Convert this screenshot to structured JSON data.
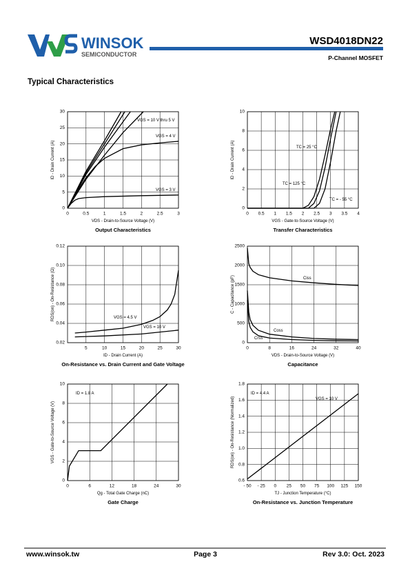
{
  "header": {
    "logo": "WINSOK",
    "logo_sub": "SEMICONDUCTOR",
    "part_number": "WSD4018DN22",
    "device": "P-Channel MOSFET"
  },
  "section_title": "Typical Characteristics",
  "chart_data": [
    {
      "type": "line",
      "title": "Output Characteristics",
      "x_label": "VDS - Drain-to-Source Voltage (V)",
      "y_label": "ID - Drain Current (A)",
      "xlim": [
        0,
        3
      ],
      "xticks": [
        0,
        0.5,
        1,
        1.5,
        2,
        2.5,
        3
      ],
      "ylim": [
        0,
        30
      ],
      "yticks": [
        0,
        5,
        10,
        15,
        20,
        25,
        30
      ],
      "grid": true,
      "annotations": [
        "VGS = 10 V thru 5 V",
        "VGS = 4 V",
        "VGS = 3 V"
      ],
      "series": [
        {
          "color": "#000000",
          "x": [
            0,
            0.5,
            1,
            1.45
          ],
          "values": [
            0,
            11.5,
            21,
            30
          ]
        },
        {
          "color": "#000000",
          "x": [
            0,
            0.5,
            1,
            1.55
          ],
          "values": [
            0,
            11,
            20,
            30
          ]
        },
        {
          "color": "#000000",
          "x": [
            0,
            0.5,
            1,
            1.7
          ],
          "values": [
            0,
            10.5,
            19,
            30
          ]
        },
        {
          "color": "#000000",
          "x": [
            0,
            0.5,
            1,
            1.5,
            2.05
          ],
          "values": [
            0,
            9,
            16.5,
            23.5,
            30
          ]
        },
        {
          "color": "#000000",
          "x": [
            0,
            0.25,
            0.5,
            0.75,
            1,
            1.5,
            2,
            2.5,
            3
          ],
          "values": [
            0,
            5,
            9.5,
            13,
            15.5,
            18.5,
            19.7,
            20.3,
            20.8
          ]
        },
        {
          "color": "#000000",
          "x": [
            0,
            0.1,
            0.2,
            0.3,
            0.5,
            1,
            2,
            3
          ],
          "values": [
            0,
            1.5,
            2.5,
            3,
            3.3,
            3.6,
            3.9,
            4.1
          ]
        }
      ]
    },
    {
      "type": "line",
      "title": "Transfer Characteristics",
      "x_label": "VGS - Gate-to-Source Voltage (V)",
      "y_label": "ID - Drain Current (A)",
      "xlim": [
        0,
        4
      ],
      "xticks": [
        0,
        0.5,
        1,
        1.5,
        2,
        2.5,
        3,
        3.5,
        4
      ],
      "ylim": [
        0,
        10
      ],
      "yticks": [
        0,
        2,
        4,
        6,
        8,
        10
      ],
      "grid": true,
      "annotations": [
        "TC = 25 °C",
        "TC = 125 °C",
        "TC = - 55 °C"
      ],
      "series": [
        {
          "color": "#000000",
          "x": [
            0,
            2.2,
            2.4,
            2.6,
            2.8,
            3.0,
            3.2
          ],
          "values": [
            0,
            0,
            0.5,
            1.8,
            4.2,
            7.2,
            10
          ]
        },
        {
          "color": "#000000",
          "x": [
            0,
            2.0,
            2.2,
            2.4,
            2.6,
            2.8,
            3.0,
            3.15
          ],
          "values": [
            0,
            0,
            0.3,
            1.2,
            3,
            5.5,
            8.2,
            10
          ]
        },
        {
          "color": "#000000",
          "x": [
            0,
            2.4,
            2.6,
            2.8,
            3.0,
            3.2,
            3.35
          ],
          "values": [
            0,
            0,
            0.5,
            2,
            4.8,
            8,
            10
          ]
        }
      ]
    },
    {
      "type": "line",
      "title": "On-Resistance vs. Drain Current and Gate Voltage",
      "x_label": "ID - Drain Current (A)",
      "y_label": "RDS(on) - On-Resistance (Ω)",
      "xlim": [
        0,
        30
      ],
      "xticks": [
        5,
        10,
        15,
        20,
        25,
        30
      ],
      "ylim": [
        0.02,
        0.12
      ],
      "yticks": [
        0.02,
        0.04,
        0.06,
        0.08,
        {
          "value": 0.1,
          "label": "0.10"
        },
        0.12
      ],
      "grid": true,
      "annotations": [
        "VGS = 4.5 V",
        "VGS = 10 V"
      ],
      "series": [
        {
          "color": "#000000",
          "x": [
            2,
            5,
            10,
            15,
            20,
            23,
            25,
            27,
            28,
            29,
            30
          ],
          "values": [
            0.03,
            0.031,
            0.033,
            0.035,
            0.039,
            0.043,
            0.047,
            0.054,
            0.06,
            0.07,
            0.095
          ]
        },
        {
          "color": "#000000",
          "x": [
            2,
            10,
            20,
            30
          ],
          "values": [
            0.026,
            0.027,
            0.029,
            0.033
          ]
        }
      ]
    },
    {
      "type": "line",
      "title": "Capacitance",
      "x_label": "VDS - Drain-to-Source Voltage (V)",
      "y_label": "C - Capacitance (pF)",
      "xlim": [
        0,
        40
      ],
      "xticks": [
        0,
        8,
        16,
        24,
        32,
        40
      ],
      "ylim": [
        0,
        2500
      ],
      "yticks": [
        0,
        500,
        1000,
        1500,
        2000,
        2500
      ],
      "grid": true,
      "annotations": [
        "Ciss",
        "Coss",
        "Crss"
      ],
      "series": [
        {
          "color": "#000000",
          "x": [
            0,
            0.5,
            1,
            2,
            4,
            8,
            16,
            24,
            32,
            40
          ],
          "values": [
            2450,
            2050,
            1950,
            1850,
            1760,
            1680,
            1600,
            1550,
            1510,
            1480
          ]
        },
        {
          "color": "#000000",
          "x": [
            0,
            0.5,
            1,
            2,
            4,
            8,
            16,
            24,
            32,
            40
          ],
          "values": [
            1350,
            800,
            600,
            450,
            320,
            220,
            150,
            110,
            90,
            80
          ]
        },
        {
          "color": "#000000",
          "x": [
            0,
            0.5,
            1,
            2,
            4,
            8,
            16,
            24,
            32,
            40
          ],
          "values": [
            1100,
            550,
            400,
            280,
            180,
            120,
            80,
            60,
            50,
            45
          ]
        }
      ]
    },
    {
      "type": "line",
      "title": "Gate Charge",
      "x_label": "Qg - Total Gate Charge (nC)",
      "y_label": "VGS - Gate-to-Source Voltage (V)",
      "xlim": [
        0,
        30
      ],
      "xticks": [
        0,
        6,
        12,
        18,
        24,
        30
      ],
      "ylim": [
        0,
        10
      ],
      "yticks": [
        0,
        2,
        4,
        6,
        8,
        10
      ],
      "grid": true,
      "annotations": [
        "ID = 1.8 A"
      ],
      "series": [
        {
          "color": "#000000",
          "x": [
            0,
            0.5,
            3,
            9,
            27
          ],
          "values": [
            0,
            1.5,
            3.1,
            3.1,
            10
          ]
        }
      ]
    },
    {
      "type": "line",
      "title": "On-Resistance vs. Junction Temperature",
      "x_label": "TJ - Junction Temperature (°C)",
      "y_label": "RDS(on) - On-Resistance (Normalized)",
      "xlim": [
        -50,
        150
      ],
      "xticks": [
        {
          "value": -50,
          "label": "- 50"
        },
        {
          "value": -25,
          "label": "- 25"
        },
        0,
        25,
        50,
        75,
        100,
        125,
        150
      ],
      "ylim": [
        0.6,
        1.8
      ],
      "yticks": [
        0.6,
        0.8,
        {
          "value": 1.0,
          "label": "1.0"
        },
        1.2,
        1.4,
        1.6,
        1.8
      ],
      "grid": true,
      "annotations": [
        "ID = 4.4 A",
        "VGS = 10 V"
      ],
      "series": [
        {
          "color": "#000000",
          "x": [
            -50,
            150
          ],
          "values": [
            0.62,
            1.68
          ]
        }
      ]
    }
  ],
  "footer": {
    "website": "www.winsok.tw",
    "page": "Page 3",
    "revision": "Rev 3.0: Oct. 2023"
  }
}
